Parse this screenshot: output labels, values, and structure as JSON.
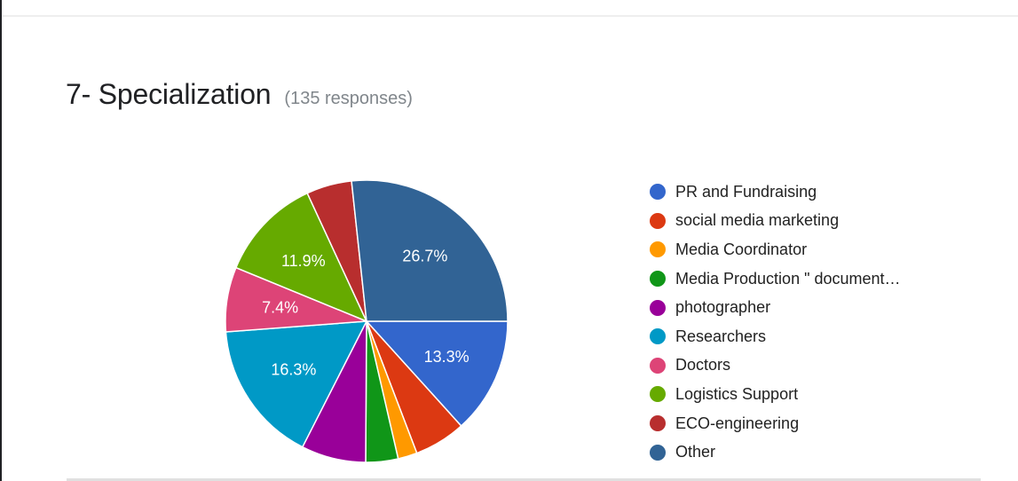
{
  "question": {
    "title": "7- Specialization",
    "responses_label": "(135 responses)"
  },
  "chart_data": {
    "type": "pie",
    "title": "7- Specialization",
    "subtitle": "(135 responses)",
    "total_responses": 135,
    "legend_position": "right",
    "start_angle": "3 o'clock, clockwise",
    "categories": [
      "PR and Fundraising",
      "social media marketing",
      "Media Coordinator",
      "Media Production \" document…",
      "photographer",
      "Researchers",
      "Doctors",
      "Logistics Support",
      "ECO-engineering",
      "Other"
    ],
    "values": [
      13.3,
      5.9,
      2.2,
      3.7,
      7.4,
      16.3,
      7.4,
      11.9,
      5.2,
      26.7
    ],
    "counts": [
      18,
      8,
      3,
      5,
      10,
      22,
      10,
      16,
      7,
      36
    ],
    "colors": [
      "#3366cc",
      "#dc3912",
      "#ff9900",
      "#109618",
      "#990099",
      "#0099c6",
      "#dd4477",
      "#66aa00",
      "#b82e2e",
      "#316395"
    ],
    "data_labels": [
      "13.3%",
      "",
      "",
      "",
      "",
      "16.3%",
      "7.4%",
      "11.9%",
      "",
      "26.7%"
    ]
  }
}
